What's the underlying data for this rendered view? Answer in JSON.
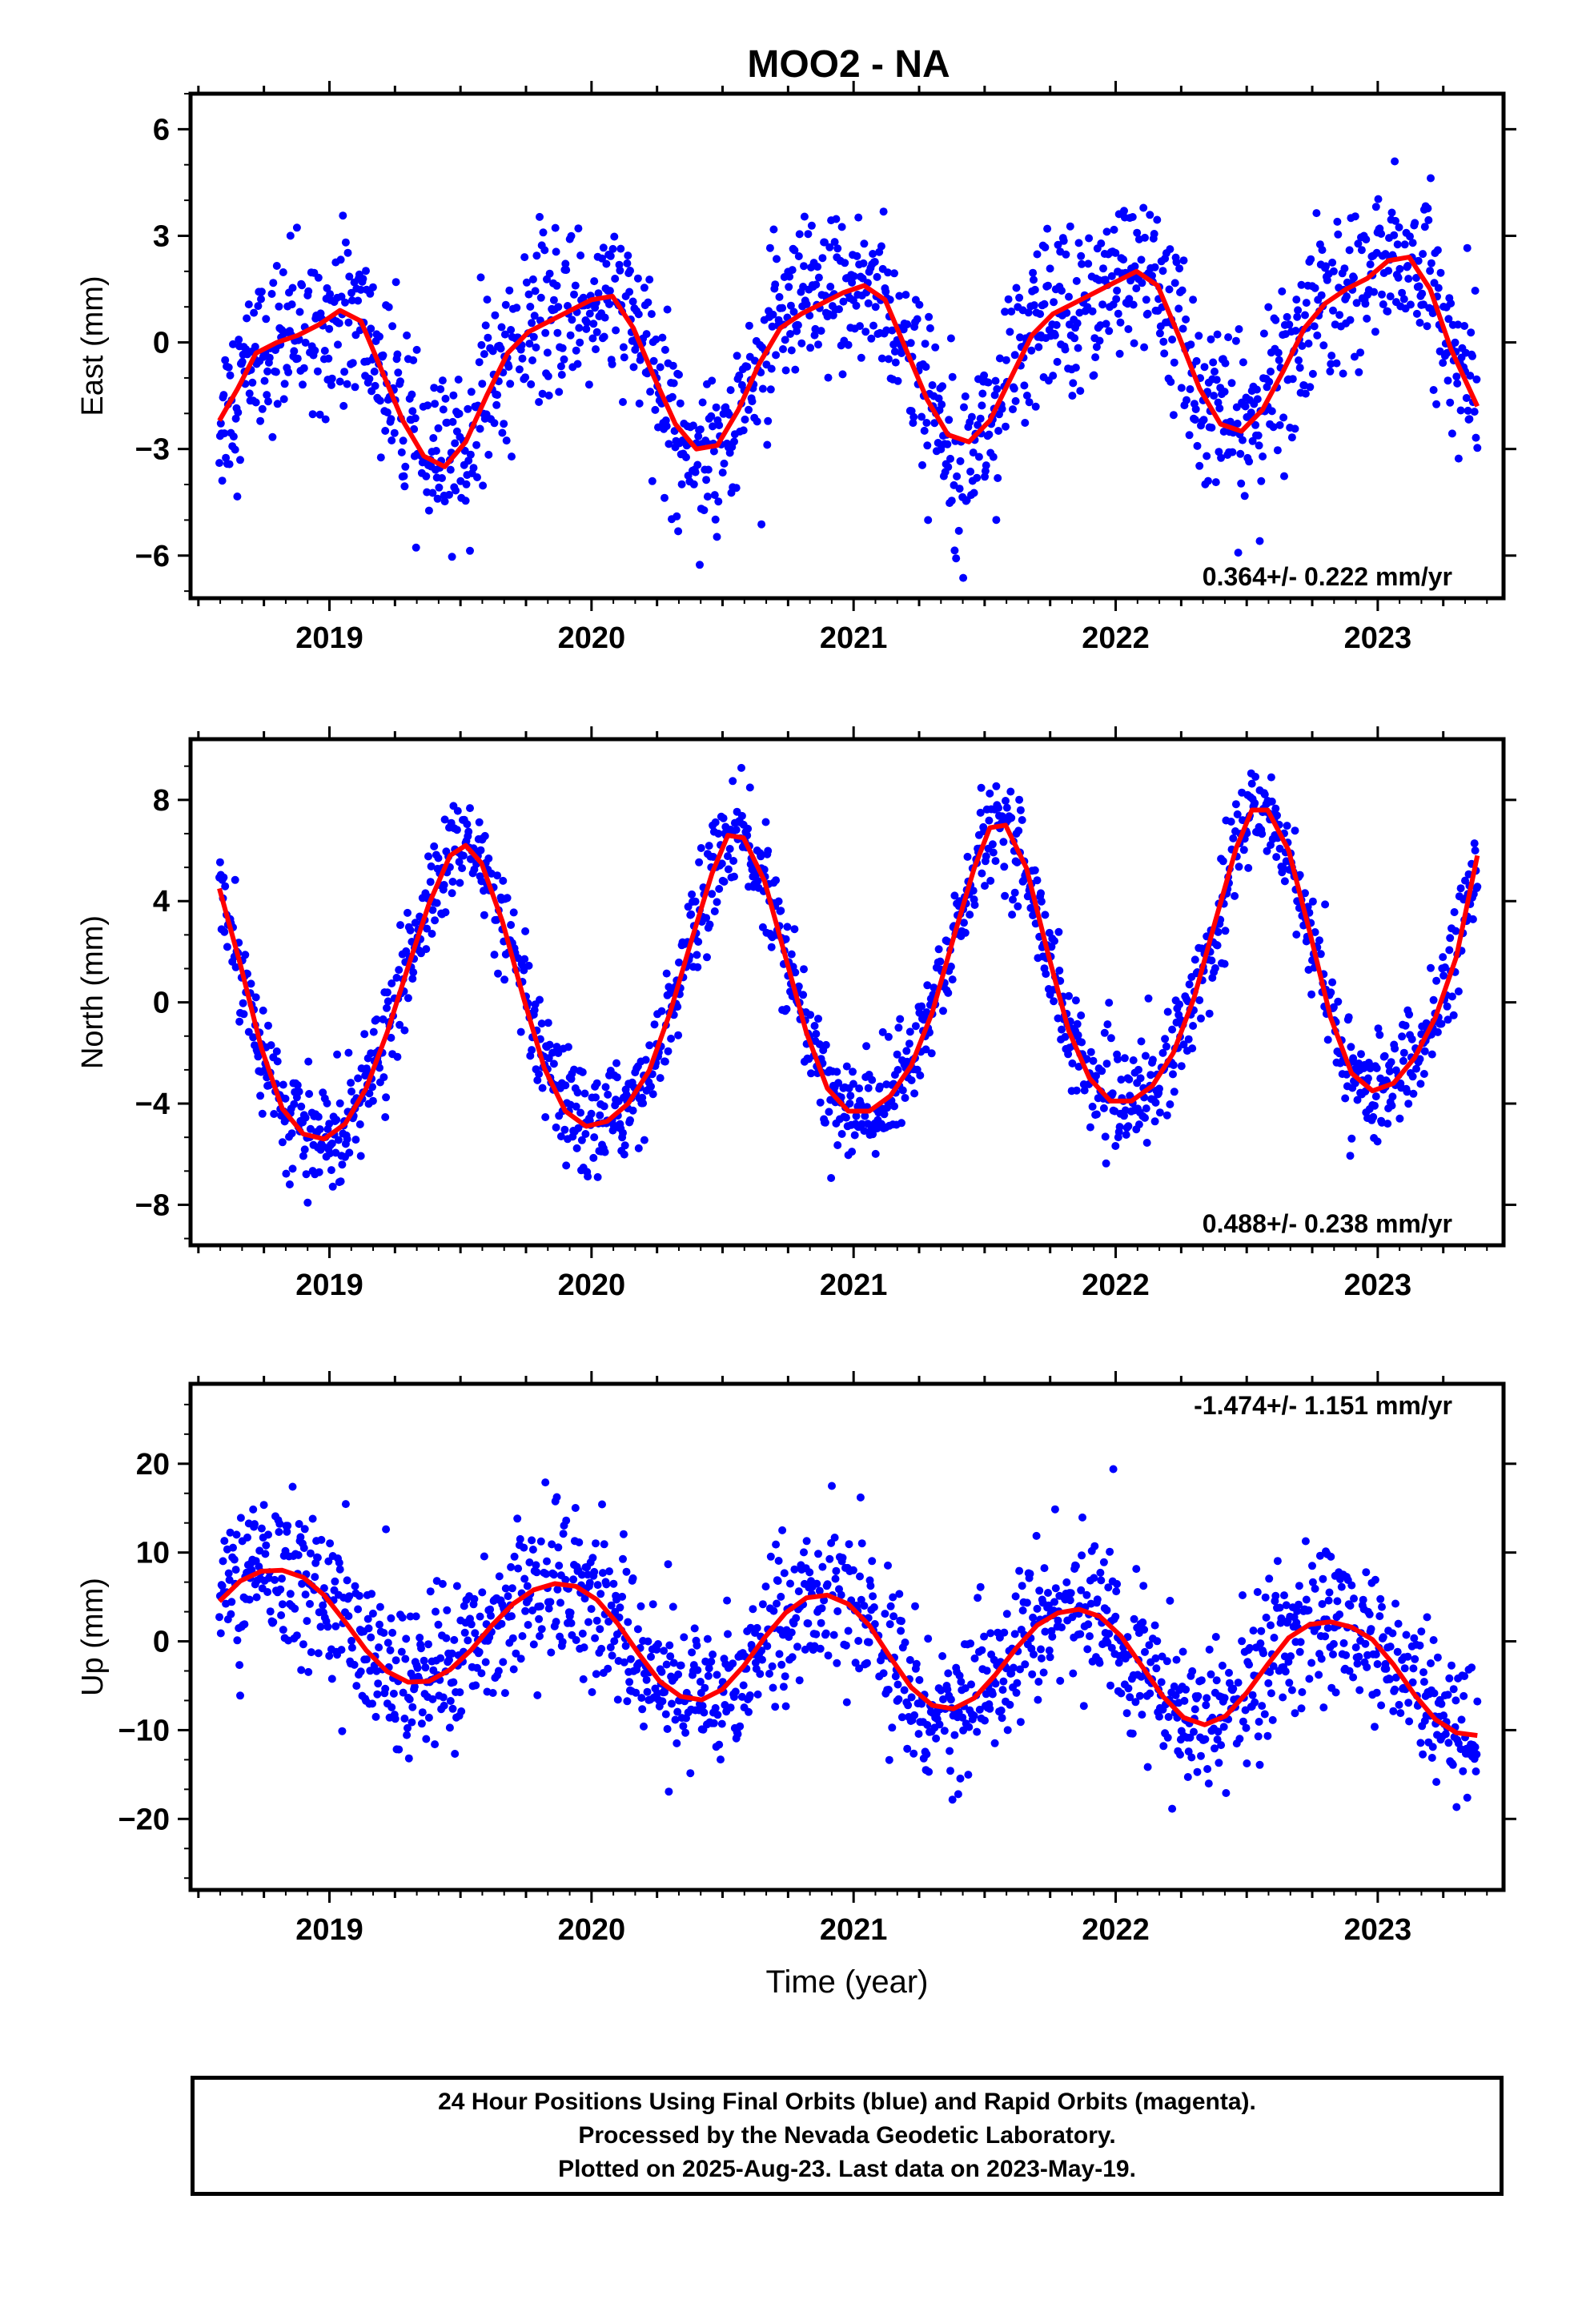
{
  "title": "MOO2 - NA",
  "footer": {
    "line1": "24 Hour Positions Using Final Orbits (blue) and Rapid Orbits (magenta).",
    "line2": "Processed by the Nevada Geodetic Laboratory.",
    "line3": "Plotted on 2025-Aug-23. Last data on 2023-May-19."
  },
  "colors": {
    "data_points": "#0000ff",
    "fit_line": "#ff0000",
    "axes": "#000000"
  },
  "chart_data": [
    {
      "type": "scatter",
      "panel": "east",
      "ylabel": "East (mm)",
      "xlabel": "",
      "xlim": [
        2018.47,
        2023.48
      ],
      "ylim": [
        -7.2,
        7.0
      ],
      "yticks": [
        -6,
        -3,
        0,
        3,
        6
      ],
      "yticklabels": [
        "−6",
        "−3",
        "0",
        "3",
        "6"
      ],
      "xticks": [
        2019,
        2020,
        2021,
        2022,
        2023
      ],
      "xticklabels": [
        "2019",
        "2020",
        "2021",
        "2022",
        "2023"
      ],
      "rate_label": "0.364+/- 0.222 mm/yr",
      "rate_position": "bottom-right",
      "series": [
        {
          "kind": "fit",
          "values_desc": "seasonal fit",
          "x": [
            2018.58,
            2018.65,
            2018.72,
            2018.8,
            2018.88,
            2018.96,
            2019.04,
            2019.12,
            2019.2,
            2019.28,
            2019.36,
            2019.44,
            2019.52,
            2019.6,
            2019.68,
            2019.76,
            2019.84,
            2019.92,
            2020.0,
            2020.08,
            2020.16,
            2020.24,
            2020.32,
            2020.4,
            2020.48,
            2020.56,
            2020.64,
            2020.72,
            2020.8,
            2020.88,
            2020.96,
            2021.04,
            2021.12,
            2021.2,
            2021.28,
            2021.36,
            2021.44,
            2021.52,
            2021.6,
            2021.68,
            2021.76,
            2021.84,
            2021.92,
            2022.0,
            2022.08,
            2022.16,
            2022.24,
            2022.32,
            2022.4,
            2022.48,
            2022.56,
            2022.64,
            2022.72,
            2022.8,
            2022.88,
            2022.96,
            2023.04,
            2023.12,
            2023.2,
            2023.28,
            2023.38
          ],
          "y": [
            -2.2,
            -1.3,
            -0.3,
            0.0,
            0.2,
            0.5,
            0.9,
            0.6,
            -0.8,
            -2.2,
            -3.2,
            -3.5,
            -2.8,
            -1.5,
            -0.3,
            0.3,
            0.6,
            0.9,
            1.2,
            1.3,
            0.4,
            -1.0,
            -2.3,
            -3.0,
            -2.9,
            -1.9,
            -0.6,
            0.4,
            0.8,
            1.1,
            1.4,
            1.6,
            1.2,
            -0.2,
            -1.6,
            -2.6,
            -2.8,
            -2.2,
            -1.0,
            0.2,
            0.8,
            1.1,
            1.4,
            1.7,
            2.0,
            1.6,
            0.2,
            -1.3,
            -2.3,
            -2.5,
            -1.9,
            -0.8,
            0.4,
            1.1,
            1.5,
            1.8,
            2.3,
            2.4,
            1.5,
            -0.2,
            -1.8
          ]
        }
      ]
    },
    {
      "type": "scatter",
      "panel": "north",
      "ylabel": "North (mm)",
      "xlabel": "",
      "xlim": [
        2018.47,
        2023.48
      ],
      "ylim": [
        -9.6,
        10.4
      ],
      "yticks": [
        -8,
        -4,
        0,
        4,
        8
      ],
      "yticklabels": [
        "−8",
        "−4",
        "0",
        "4",
        "8"
      ],
      "xticks": [
        2019,
        2020,
        2021,
        2022,
        2023
      ],
      "xticklabels": [
        "2019",
        "2020",
        "2021",
        "2022",
        "2023"
      ],
      "rate_label": "0.488+/- 0.238 mm/yr",
      "rate_position": "bottom-right",
      "series": [
        {
          "kind": "fit",
          "values_desc": "seasonal fit",
          "x": [
            2018.58,
            2018.66,
            2018.74,
            2018.82,
            2018.9,
            2018.98,
            2019.06,
            2019.14,
            2019.22,
            2019.3,
            2019.38,
            2019.46,
            2019.52,
            2019.58,
            2019.66,
            2019.74,
            2019.82,
            2019.9,
            2019.98,
            2020.06,
            2020.14,
            2020.22,
            2020.3,
            2020.38,
            2020.46,
            2020.52,
            2020.58,
            2020.66,
            2020.74,
            2020.82,
            2020.9,
            2020.98,
            2021.06,
            2021.14,
            2021.22,
            2021.3,
            2021.38,
            2021.46,
            2021.52,
            2021.58,
            2021.66,
            2021.74,
            2021.82,
            2021.9,
            2021.98,
            2022.06,
            2022.14,
            2022.22,
            2022.3,
            2022.38,
            2022.46,
            2022.52,
            2022.58,
            2022.66,
            2022.74,
            2022.82,
            2022.9,
            2022.98,
            2023.06,
            2023.14,
            2023.22,
            2023.3,
            2023.38
          ],
          "y": [
            4.5,
            1.5,
            -1.8,
            -4.2,
            -5.2,
            -5.4,
            -4.8,
            -3.4,
            -1.2,
            1.4,
            3.9,
            5.8,
            6.2,
            5.5,
            3.2,
            0.2,
            -2.6,
            -4.3,
            -4.9,
            -4.7,
            -4.0,
            -2.7,
            -0.4,
            2.4,
            5.1,
            6.6,
            6.5,
            4.8,
            1.8,
            -1.2,
            -3.4,
            -4.3,
            -4.3,
            -3.7,
            -2.5,
            -0.4,
            2.5,
            5.3,
            6.9,
            7.0,
            5.3,
            2.0,
            -1.1,
            -3.0,
            -3.9,
            -3.9,
            -3.3,
            -2.0,
            0.2,
            3.2,
            6.1,
            7.6,
            7.6,
            6.0,
            2.8,
            -0.6,
            -2.8,
            -3.5,
            -3.2,
            -2.2,
            -0.6,
            1.8,
            5.8
          ]
        }
      ]
    },
    {
      "type": "scatter",
      "panel": "up",
      "ylabel": "Up (mm)",
      "xlabel": "Time (year)",
      "xlim": [
        2018.47,
        2023.48
      ],
      "ylim": [
        -28,
        29
      ],
      "yticks": [
        -20,
        -10,
        0,
        10,
        20
      ],
      "yticklabels": [
        "−20",
        "−10",
        "0",
        "10",
        "20"
      ],
      "xticks": [
        2019,
        2020,
        2021,
        2022,
        2023
      ],
      "xticklabels": [
        "2019",
        "2020",
        "2021",
        "2022",
        "2023"
      ],
      "rate_label": "-1.474+/- 1.151 mm/yr",
      "rate_position": "top-right",
      "series": [
        {
          "kind": "fit",
          "values_desc": "seasonal fit",
          "x": [
            2018.58,
            2018.66,
            2018.74,
            2018.82,
            2018.9,
            2018.98,
            2019.06,
            2019.14,
            2019.22,
            2019.3,
            2019.38,
            2019.46,
            2019.54,
            2019.62,
            2019.7,
            2019.78,
            2019.86,
            2019.94,
            2020.02,
            2020.1,
            2020.18,
            2020.26,
            2020.34,
            2020.42,
            2020.5,
            2020.58,
            2020.66,
            2020.74,
            2020.82,
            2020.9,
            2020.98,
            2021.06,
            2021.14,
            2021.22,
            2021.3,
            2021.38,
            2021.46,
            2021.54,
            2021.62,
            2021.7,
            2021.78,
            2021.86,
            2021.94,
            2022.02,
            2022.1,
            2022.18,
            2022.26,
            2022.34,
            2022.42,
            2022.5,
            2022.58,
            2022.66,
            2022.74,
            2022.82,
            2022.9,
            2022.98,
            2023.06,
            2023.14,
            2023.22,
            2023.3,
            2023.38
          ],
          "y": [
            4.5,
            6.8,
            7.9,
            8.0,
            7.2,
            5.2,
            2.2,
            -1.0,
            -3.4,
            -4.6,
            -4.5,
            -3.2,
            -1.0,
            1.8,
            4.2,
            5.8,
            6.5,
            6.2,
            4.7,
            2.0,
            -1.4,
            -4.5,
            -6.2,
            -6.6,
            -5.4,
            -2.8,
            0.4,
            3.2,
            4.9,
            5.2,
            4.2,
            1.8,
            -1.8,
            -5.2,
            -7.2,
            -7.6,
            -6.4,
            -3.8,
            -0.8,
            1.8,
            3.2,
            3.6,
            2.8,
            0.6,
            -2.8,
            -6.2,
            -8.6,
            -9.4,
            -8.4,
            -5.8,
            -2.6,
            0.4,
            1.9,
            2.2,
            1.6,
            0.2,
            -2.6,
            -6.0,
            -8.8,
            -10.3,
            -10.6
          ]
        }
      ]
    }
  ]
}
